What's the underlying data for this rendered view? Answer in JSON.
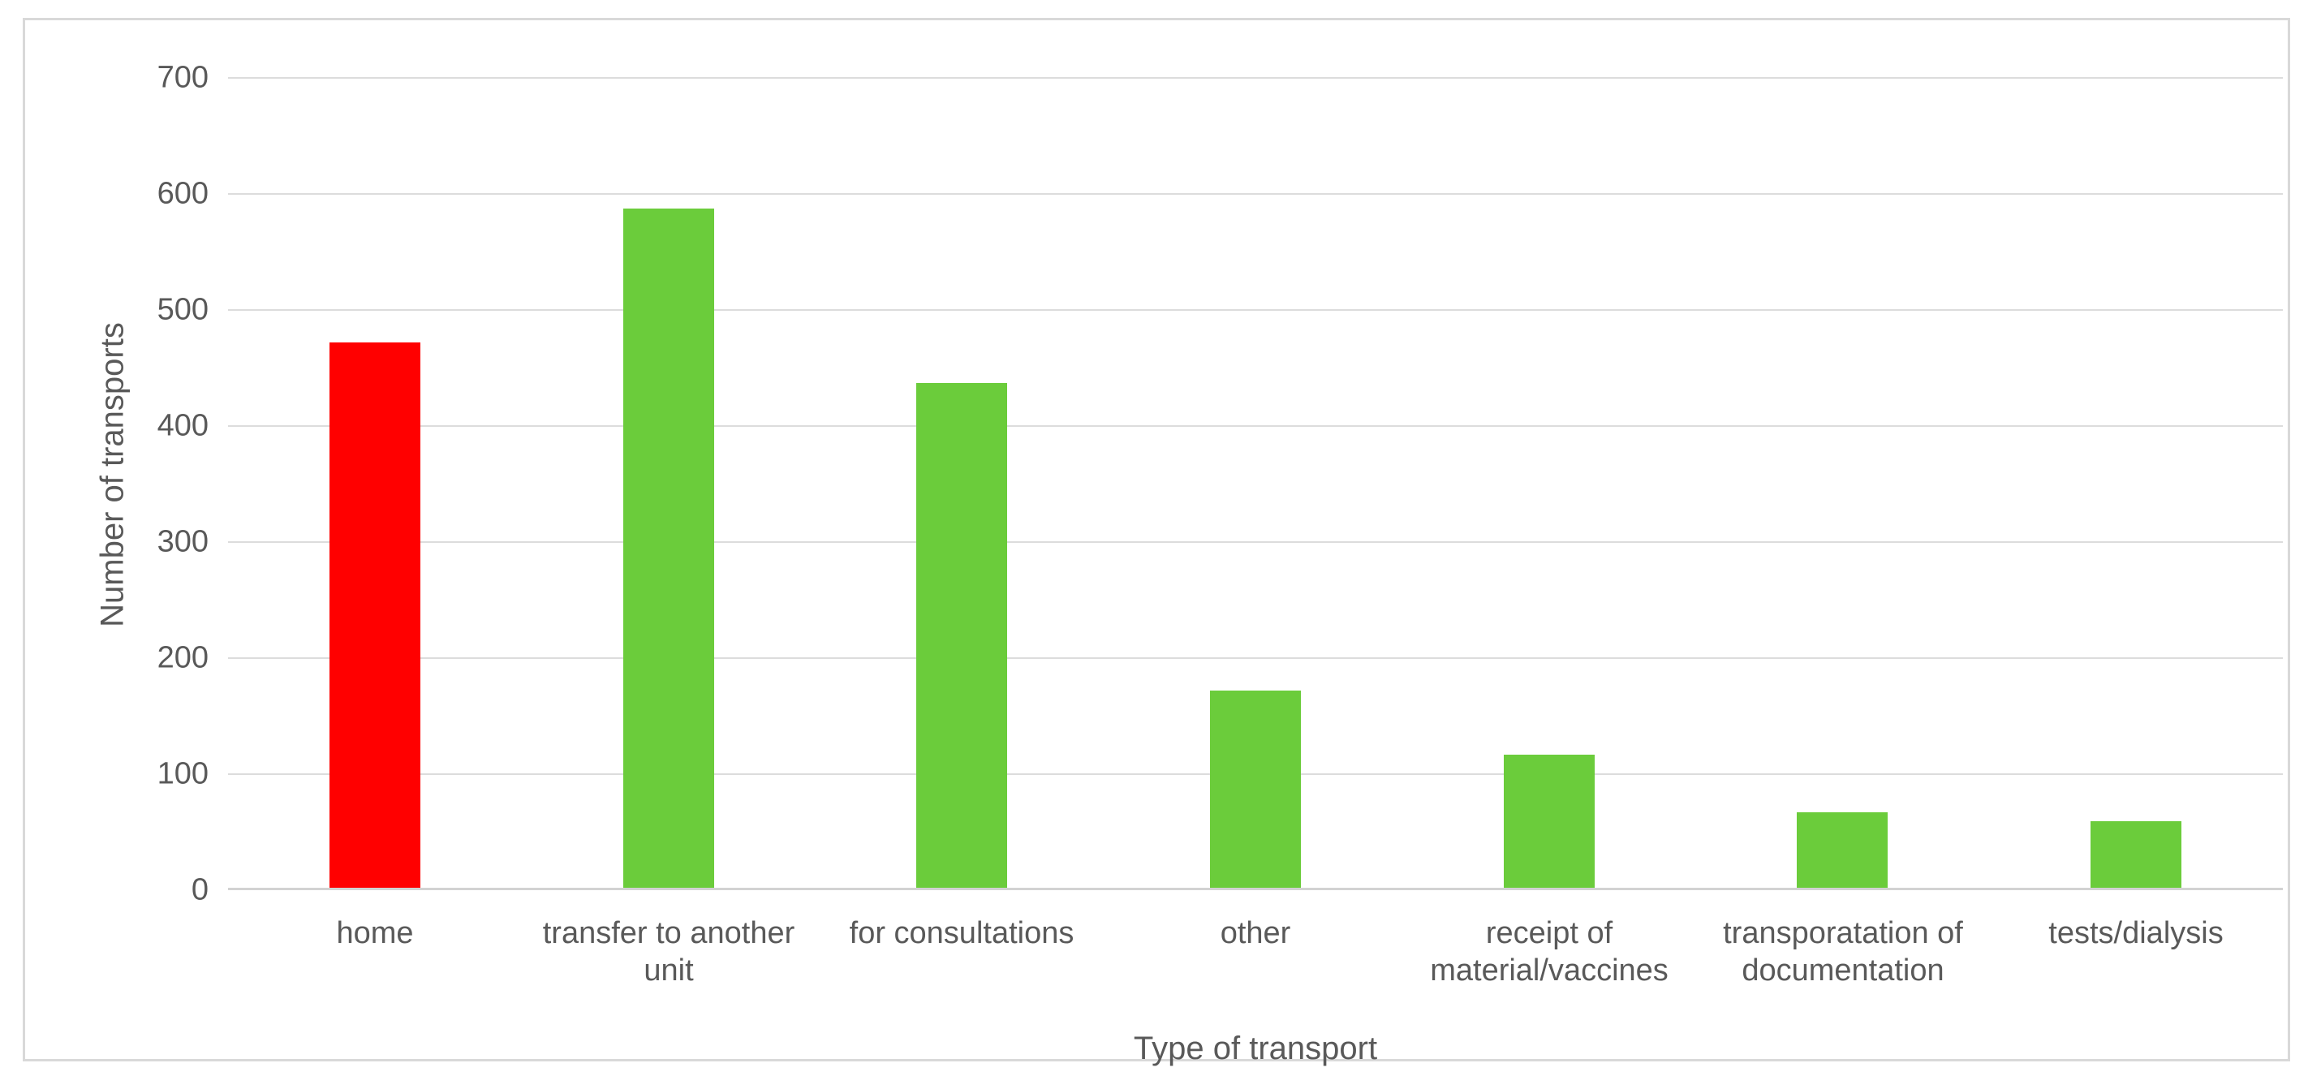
{
  "chart_data": {
    "type": "bar",
    "title": "",
    "xlabel": "Type of transport",
    "ylabel": "Number of transports",
    "categories": [
      "home",
      "transfer to another unit",
      "for consultations",
      "other",
      "receipt of material/vaccines",
      "transporatation of documentation",
      "tests/dialysis"
    ],
    "values": [
      470,
      585,
      435,
      170,
      115,
      65,
      57
    ],
    "bar_colors": [
      "#FF0000",
      "#6BCC3B",
      "#6BCC3B",
      "#6BCC3B",
      "#6BCC3B",
      "#6BCC3B",
      "#6BCC3B"
    ],
    "ylim": [
      0,
      700
    ],
    "yticks": [
      0,
      100,
      200,
      300,
      400,
      500,
      600,
      700
    ],
    "grid": "horizontal",
    "legend": "none",
    "colors": {
      "highlight_bar": "#FF0000",
      "default_bar": "#6BCC3B",
      "gridline": "#DCDCDC",
      "axis_line": "#D2D2D2",
      "text": "#595959",
      "frame_border": "#D9D9D9",
      "background": "#FFFFFF"
    }
  }
}
